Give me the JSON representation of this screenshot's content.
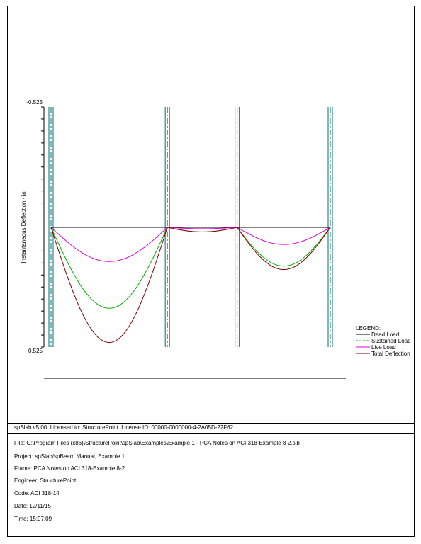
{
  "chart_data": {
    "type": "line",
    "ylabel": "Instantaneous Deflection - in",
    "ylim": [
      -0.525,
      0.525
    ],
    "y_tick_labels": [
      "-0.525",
      "0.525"
    ],
    "y_axis_inverted": true,
    "supports_x": [
      0,
      20,
      32,
      48
    ],
    "spans": [
      [
        0,
        20
      ],
      [
        20,
        32
      ],
      [
        32,
        48
      ]
    ],
    "legend": {
      "title": "LEGEND:",
      "placement": "right"
    },
    "series": [
      {
        "name": "Dead Load",
        "color": "#000000",
        "dashed": false,
        "max_deflection": [
          0.0,
          0.0,
          0.0
        ]
      },
      {
        "name": "Sustained Load",
        "color": "#00b000",
        "dashed": true,
        "max_deflection": [
          0.355,
          0.02,
          0.17
        ]
      },
      {
        "name": "Live Load",
        "color": "#e000e0",
        "dashed": false,
        "max_deflection": [
          0.15,
          0.006,
          0.075
        ]
      },
      {
        "name": "Total Deflection",
        "color": "#800000",
        "dashed": false,
        "max_deflection": [
          0.505,
          0.02,
          0.185
        ]
      }
    ]
  },
  "footer": {
    "license": "spSlab v5.00. Licensed to: StructurePoint. License ID: 00000-0000000-4-2A05D-22F62",
    "file": "File: C:\\Program Files (x86)\\StructurePoint\\spSlab\\Examples\\Example 1 - PCA Notes on ACI 318-Example 8-2.slb",
    "project": "Project: spSlab/spBeam Manual, Example 1",
    "frame": "Frame: PCA Notes on ACI 318-Example 8-2",
    "engineer": "Engineer: StructurePoint",
    "code": "Code: ACI 318-14",
    "date": "Date: 12/11/15",
    "time": "Time: 15:07:09"
  },
  "colors": {
    "column_lines": "#007070",
    "frame": "#000000"
  }
}
